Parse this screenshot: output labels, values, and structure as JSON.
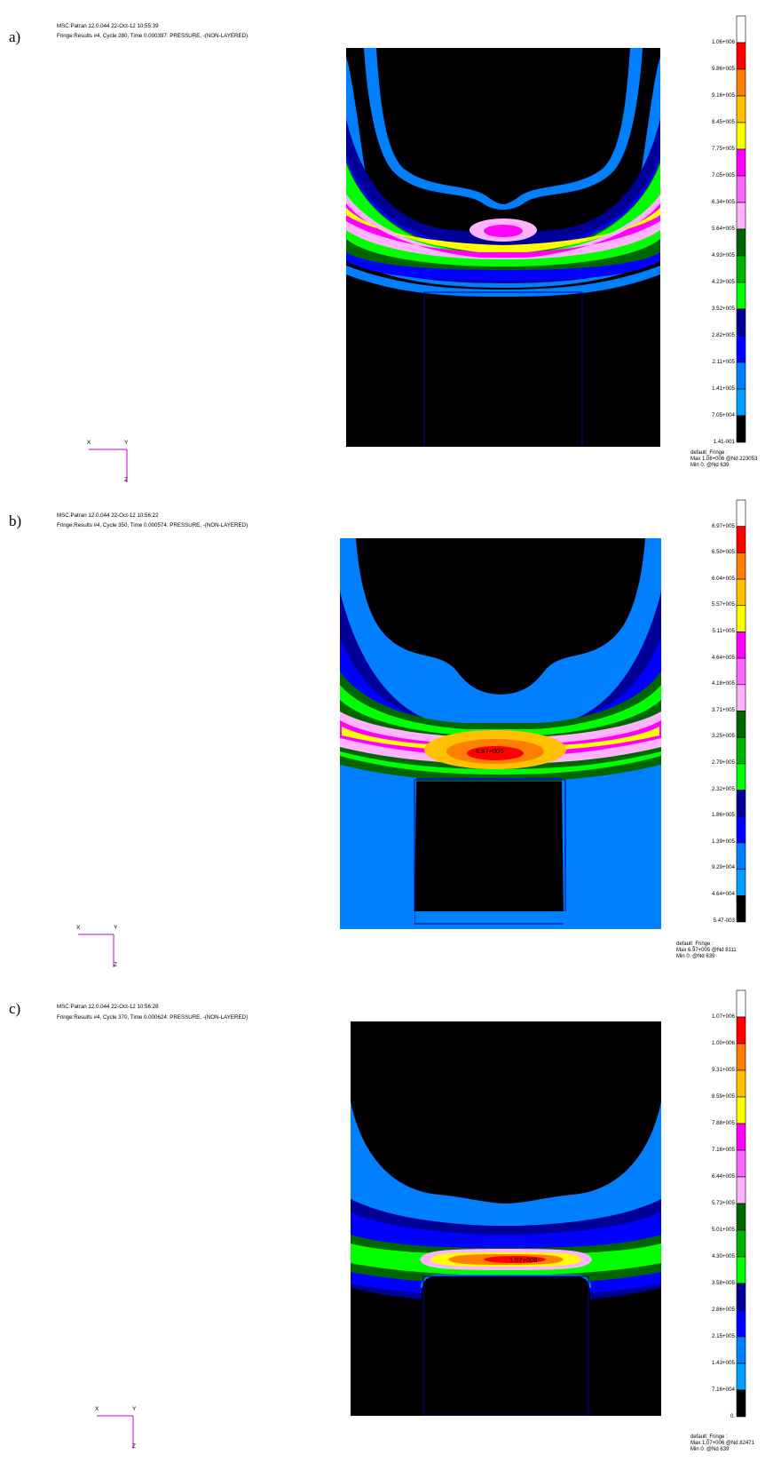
{
  "panels": [
    {
      "letter": "a)",
      "header1": "MSC.Patran 12.0.044 22-Oct-12 10:55:39",
      "header2": "Fringe:Results #4, Cycle 280, Time 0.000397: PRESSURE, -(NON-LAYERED)",
      "legend_labels": [
        "1.06+006",
        "9.86+005",
        "9.16+005",
        "8.45+005",
        "7.75+005",
        "7.05+005",
        "6.34+005",
        "5.64+005",
        "4.93+005",
        "4.23+005",
        "3.52+005",
        "2.82+005",
        "2.11+005",
        "1.41+005",
        "7.05+004",
        "1.41-001"
      ],
      "fringe_title": "default_Fringe :",
      "fringe_max": "Max 1.06+006 @Nd 223053",
      "fringe_min": "Min 0. @Nd 639",
      "peak_label": "",
      "triad": {
        "x": "X",
        "y": "Y",
        "z": "Z"
      }
    },
    {
      "letter": "b)",
      "header1": "MSC.Patran 12.0.044 22-Oct-12 10:56:22",
      "header2": "Fringe:Results #4, Cycle 350, Time 0.000574: PRESSURE, -(NON-LAYERED)",
      "legend_labels": [
        "6.97+005",
        "6.50+005",
        "6.04+005",
        "5.57+005",
        "5.11+005",
        "4.64+005",
        "4.18+005",
        "3.71+005",
        "3.25+005",
        "2.79+005",
        "2.32+005",
        "1.86+005",
        "1.39+005",
        "9.29+004",
        "4.64+004",
        "5.47-003"
      ],
      "fringe_title": "default_Fringe :",
      "fringe_max": "Max 6.97+005 @Nd 8111",
      "fringe_min": "Min 0. @Nd 639",
      "peak_label": "6.97+005",
      "triad": {
        "x": "X",
        "y": "Y",
        "z": "Z"
      }
    },
    {
      "letter": "c)",
      "header1": "MSC.Patran 12.0.044 22-Oct-12 10:56:28",
      "header2": "Fringe:Results #4, Cycle 370, Time 0.000624: PRESSURE, -(NON-LAYERED)",
      "legend_labels": [
        "1.07+006",
        "1.00+006",
        "9.31+005",
        "8.59+005",
        "7.88+005",
        "7.16+005",
        "6.44+005",
        "5.73+005",
        "5.01+005",
        "4.30+005",
        "3.58+005",
        "2.86+005",
        "2.15+005",
        "1.43+005",
        "7.16+004",
        "0."
      ],
      "fringe_title": "default_Fringe :",
      "fringe_max": "Max 1.07+006 @Nd 82471",
      "fringe_min": "Min 0. @Nd 639",
      "peak_label": "1.07+006",
      "triad": {
        "x": "X",
        "y": "Y",
        "z": "Z"
      }
    }
  ],
  "colors": {
    "scale_top_to_bottom": [
      "#ffffff",
      "#ff0000",
      "#ff8000",
      "#ffc000",
      "#ffff00",
      "#ff00ff",
      "#ff66ff",
      "#ffb3ff",
      "#006600",
      "#00b300",
      "#00ff00",
      "#000099",
      "#0000ff",
      "#0080ff",
      "#00a0ff",
      "#000000"
    ],
    "background": "#000000",
    "triad": "#cc00cc"
  }
}
